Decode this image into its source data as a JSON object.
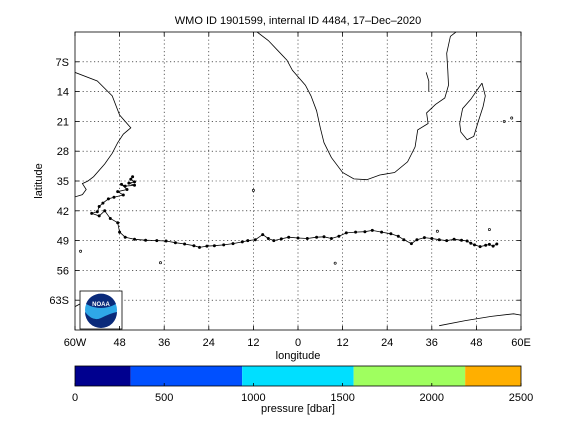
{
  "map": {
    "title": "WMO ID 1901599, internal ID 4484, 17–Dec–2020",
    "xlabel": "longitude",
    "ylabel": "latitude",
    "xlim": [
      -60,
      60
    ],
    "ylim": [
      -70,
      0
    ],
    "xticks": [
      {
        "value": -60,
        "label": "60W"
      },
      {
        "value": -48,
        "label": "48"
      },
      {
        "value": -36,
        "label": "36"
      },
      {
        "value": -24,
        "label": "24"
      },
      {
        "value": -12,
        "label": "12"
      },
      {
        "value": 0,
        "label": "0"
      },
      {
        "value": 12,
        "label": "12"
      },
      {
        "value": 24,
        "label": "24"
      },
      {
        "value": 36,
        "label": "36"
      },
      {
        "value": 48,
        "label": "48"
      },
      {
        "value": 60,
        "label": "60E"
      }
    ],
    "yticks": [
      {
        "value": -7,
        "label": "7S"
      },
      {
        "value": -14,
        "label": "14"
      },
      {
        "value": -21,
        "label": "21"
      },
      {
        "value": -28,
        "label": "28"
      },
      {
        "value": -35,
        "label": "35"
      },
      {
        "value": -42,
        "label": "42"
      },
      {
        "value": -49,
        "label": "49"
      },
      {
        "value": -56,
        "label": "56"
      },
      {
        "value": -63,
        "label": "63S"
      }
    ],
    "grid": "dotted",
    "logo": "NOAA",
    "colors": {
      "track": "#000000",
      "coast": "#000000",
      "grid": "#000000"
    }
  },
  "colorbar": {
    "label": "pressure [dbar]",
    "range": [
      0,
      2500
    ],
    "ticks": [
      "0",
      "500",
      "1000",
      "1500",
      "2000",
      "2500"
    ],
    "tick_values": [
      0,
      500,
      1000,
      1500,
      2000,
      2500
    ],
    "segments": [
      {
        "from": 0,
        "to": 312,
        "color": "#00008f"
      },
      {
        "from": 312,
        "to": 937,
        "color": "#0050ff"
      },
      {
        "from": 937,
        "to": 1562,
        "color": "#00dfff"
      },
      {
        "from": 1562,
        "to": 2187,
        "color": "#9fff5f"
      },
      {
        "from": 2187,
        "to": 2500,
        "color": "#ffaf00"
      }
    ]
  },
  "chart_data": {
    "type": "scatter",
    "title": "WMO ID 1901599, internal ID 4484, 17–Dec–2020",
    "xlabel": "longitude",
    "ylabel": "latitude",
    "xlim": [
      -60,
      60
    ],
    "ylim": [
      -70,
      0
    ],
    "series": [
      {
        "values": [
          [
            -44.5,
            -34.0
          ],
          [
            -45.0,
            -34.6
          ],
          [
            -44.0,
            -35.2
          ],
          [
            -45.5,
            -35.5
          ],
          [
            -44.0,
            -36.0
          ],
          [
            -46.5,
            -36.2
          ],
          [
            -47.5,
            -35.8
          ],
          [
            -46.0,
            -37.0
          ],
          [
            -48.5,
            -37.5
          ],
          [
            -47.0,
            -38.3
          ],
          [
            -49.5,
            -38.8
          ],
          [
            -51.0,
            -39.2
          ],
          [
            -52.5,
            -40.2
          ],
          [
            -53.5,
            -41.0
          ],
          [
            -54.0,
            -42.2
          ],
          [
            -55.5,
            -42.6
          ],
          [
            -53.5,
            -43.2
          ],
          [
            -52.0,
            -42.0
          ],
          [
            -50.5,
            -43.8
          ],
          [
            -48.5,
            -44.8
          ],
          [
            -48.0,
            -47.0
          ],
          [
            -46.5,
            -48.2
          ],
          [
            -44.0,
            -48.7
          ],
          [
            -41.0,
            -48.9
          ],
          [
            -38.0,
            -49.0
          ],
          [
            -35.5,
            -49.1
          ],
          [
            -33.0,
            -49.5
          ],
          [
            -30.5,
            -49.8
          ],
          [
            -28.0,
            -50.2
          ],
          [
            -26.5,
            -50.6
          ],
          [
            -24.5,
            -50.3
          ],
          [
            -22.5,
            -50.2
          ],
          [
            -20.0,
            -50.0
          ],
          [
            -17.5,
            -49.7
          ],
          [
            -15.0,
            -49.3
          ],
          [
            -13.5,
            -49.0
          ],
          [
            -11.5,
            -48.8
          ],
          [
            -9.5,
            -47.6
          ],
          [
            -8.0,
            -48.5
          ],
          [
            -6.5,
            -49.0
          ],
          [
            -4.5,
            -48.6
          ],
          [
            -2.5,
            -48.2
          ],
          [
            0.0,
            -48.4
          ],
          [
            2.5,
            -48.5
          ],
          [
            5.0,
            -48.2
          ],
          [
            7.0,
            -48.1
          ],
          [
            9.0,
            -48.5
          ],
          [
            11.0,
            -48.0
          ],
          [
            13.0,
            -47.2
          ],
          [
            15.5,
            -47.0
          ],
          [
            18.0,
            -46.9
          ],
          [
            20.0,
            -46.6
          ],
          [
            22.5,
            -47.0
          ],
          [
            25.0,
            -47.4
          ],
          [
            27.0,
            -48.0
          ],
          [
            28.5,
            -48.8
          ],
          [
            30.5,
            -49.7
          ],
          [
            32.0,
            -48.8
          ],
          [
            34.0,
            -48.3
          ],
          [
            36.0,
            -48.5
          ],
          [
            38.0,
            -48.8
          ],
          [
            40.0,
            -49.0
          ],
          [
            42.0,
            -48.7
          ],
          [
            44.0,
            -48.9
          ],
          [
            45.5,
            -49.1
          ],
          [
            46.5,
            -49.6
          ],
          [
            47.5,
            -50.0
          ],
          [
            49.0,
            -50.4
          ],
          [
            50.5,
            -50.1
          ],
          [
            51.5,
            -49.9
          ],
          [
            52.5,
            -50.3
          ],
          [
            53.5,
            -49.8
          ]
        ]
      }
    ]
  }
}
